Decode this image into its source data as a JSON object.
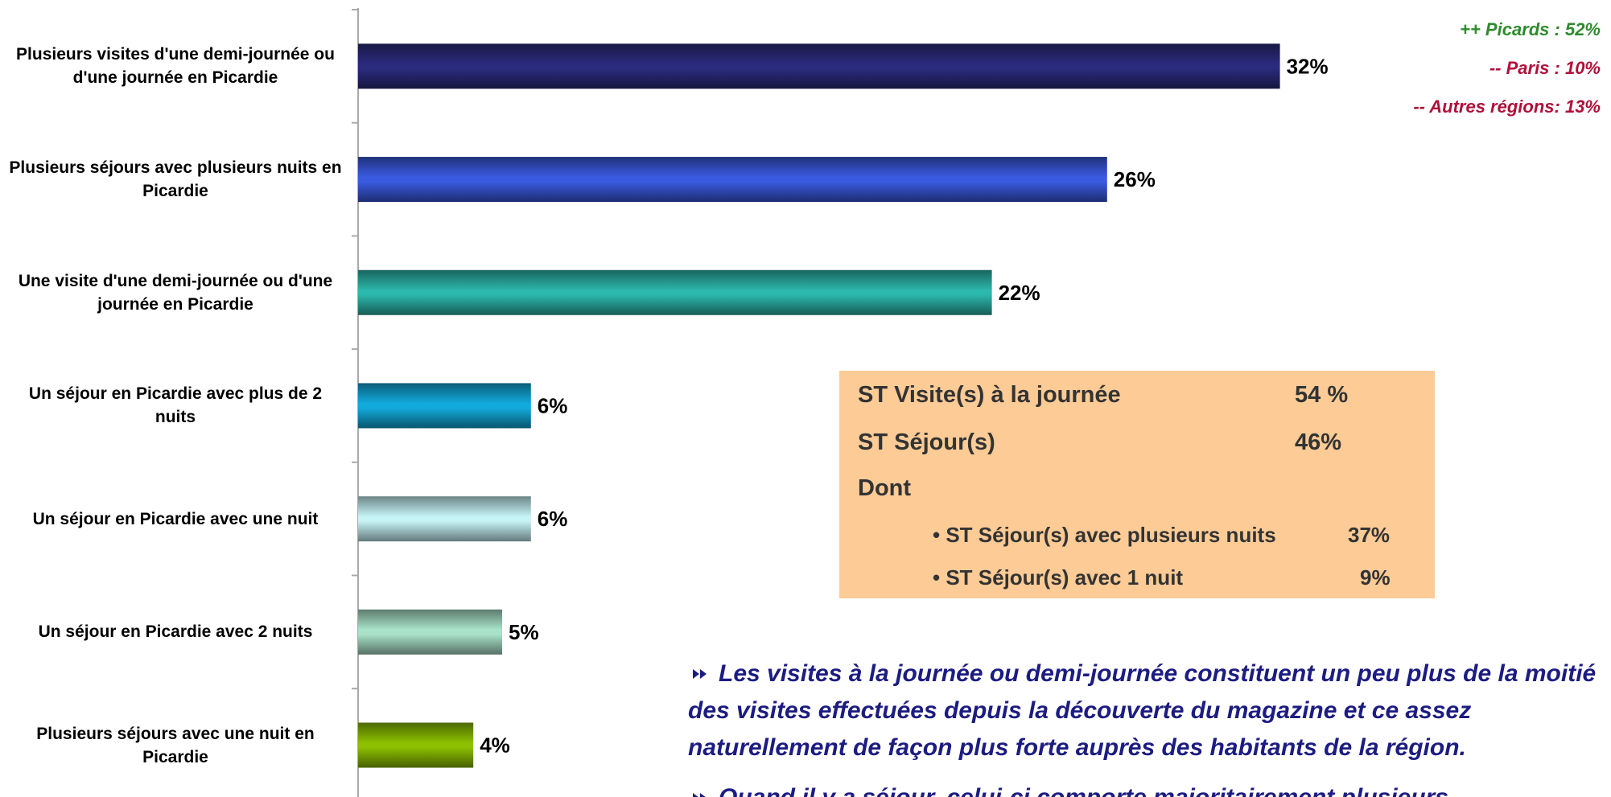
{
  "chart_data": {
    "type": "barh",
    "categories": [
      "Plusieurs visites d'une demi-journée ou d'une journée en Picardie",
      "Plusieurs séjours avec plusieurs nuits en Picardie",
      "Une visite d'une demi-journée ou d'une journée en Picardie",
      "Un séjour en Picardie avec plus de 2 nuits",
      "Un séjour en Picardie avec une nuit",
      "Un séjour en Picardie avec 2 nuits",
      "Plusieurs séjours avec une nuit en Picardie"
    ],
    "values": [
      32,
      26,
      22,
      6,
      6,
      5,
      4
    ],
    "value_labels": [
      "32%",
      "26%",
      "22%",
      "6%",
      "6%",
      "5%",
      "4%"
    ],
    "colors": [
      "#2b2b7e",
      "#3a5ae0",
      "#2cb8ac",
      "#12aadb",
      "#c6f3f6",
      "#a9e2c9",
      "#8cc000"
    ],
    "xlim": [
      0,
      40
    ]
  },
  "annotations": [
    {
      "text": "++ Picards : 52%",
      "color": "#2e8b2e"
    },
    {
      "text": "-- Paris : 10%",
      "color": "#b0103a"
    },
    {
      "text": "-- Autres régions: 13%",
      "color": "#b0103a"
    }
  ],
  "summary_box": {
    "rows": [
      {
        "label": "ST Visite(s) à la journée",
        "value": "54 %"
      },
      {
        "label": "ST Séjour(s)",
        "value": "46%"
      }
    ],
    "subheading": "Dont",
    "sub_rows": [
      {
        "label": "• ST Séjour(s) avec plusieurs nuits",
        "value": "37%"
      },
      {
        "label": "• ST Séjour(s) avec 1 nuit",
        "value": "9%"
      }
    ]
  },
  "notes": [
    "Les visites à la journée ou demi-journée constituent un peu plus de la moitié des visites effectuées depuis la découverte du magazine et ce assez naturellement de façon plus forte auprès des habitants de la région.",
    "Quand il y a séjour, celui-ci comporte majoritairement plusieurs"
  ]
}
